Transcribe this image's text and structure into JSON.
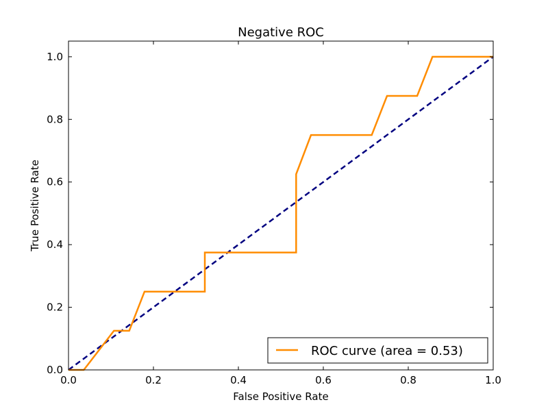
{
  "chart_data": {
    "type": "line",
    "title": "Negative ROC",
    "xlabel": "False Positive Rate",
    "ylabel": "True Positive Rate",
    "xlim": [
      0.0,
      1.0
    ],
    "ylim": [
      0.0,
      1.05
    ],
    "xticks": [
      "0.0",
      "0.2",
      "0.4",
      "0.6",
      "0.8",
      "1.0"
    ],
    "yticks": [
      "0.0",
      "0.2",
      "0.4",
      "0.6",
      "0.8",
      "1.0"
    ],
    "grid": false,
    "legend_position": "lower-right",
    "series": [
      {
        "name": "ROC curve (area = 0.53)",
        "color": "#ff8c00",
        "style": "solid",
        "points": [
          [
            0.0,
            0.0
          ],
          [
            0.036,
            0.0
          ],
          [
            0.107,
            0.125
          ],
          [
            0.143,
            0.125
          ],
          [
            0.179,
            0.25
          ],
          [
            0.321,
            0.25
          ],
          [
            0.321,
            0.375
          ],
          [
            0.536,
            0.375
          ],
          [
            0.536,
            0.625
          ],
          [
            0.571,
            0.75
          ],
          [
            0.714,
            0.75
          ],
          [
            0.75,
            0.875
          ],
          [
            0.821,
            0.875
          ],
          [
            0.857,
            1.0
          ],
          [
            1.0,
            1.0
          ]
        ]
      },
      {
        "color": "#000080",
        "style": "dashed",
        "points": [
          [
            0.0,
            0.0
          ],
          [
            1.0,
            1.0
          ]
        ]
      }
    ]
  }
}
